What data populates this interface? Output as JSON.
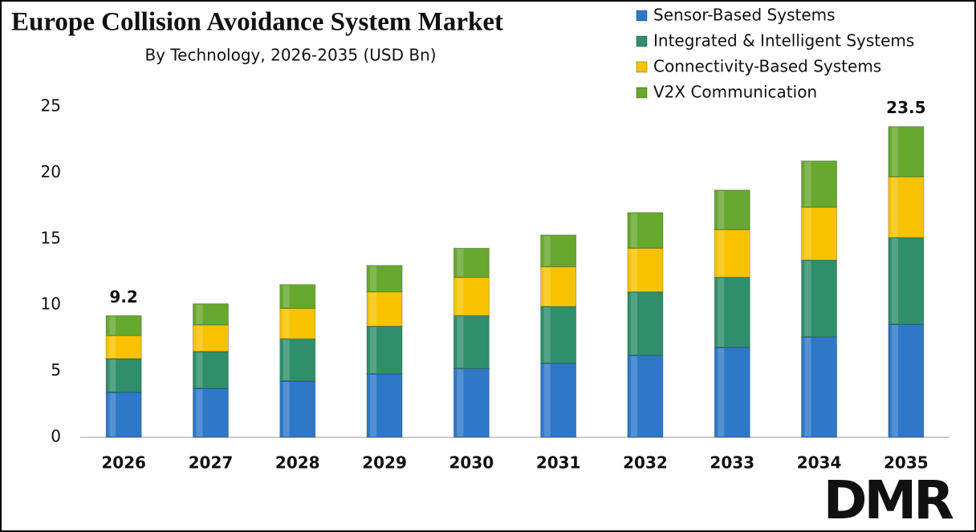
{
  "chart_data": {
    "type": "stacked-bar",
    "title": "Europe Collision Avoidance System Market",
    "subtitle": "By Technology, 2026-2035 (USD Bn)",
    "categories": [
      "2026",
      "2027",
      "2028",
      "2029",
      "2030",
      "2031",
      "2032",
      "2033",
      "2034",
      "2035"
    ],
    "series": [
      {
        "name": "Sensor-Based Systems",
        "color": "#2f78c8",
        "values": [
          3.4,
          3.7,
          4.25,
          4.8,
          5.2,
          5.6,
          6.2,
          6.8,
          7.6,
          8.55
        ]
      },
      {
        "name": "Integrated & Intelligent Systems",
        "color": "#2f8f6a",
        "values": [
          2.55,
          2.8,
          3.2,
          3.6,
          4.0,
          4.3,
          4.8,
          5.3,
          5.8,
          6.55
        ]
      },
      {
        "name": "Connectivity-Based Systems",
        "color": "#f7c300",
        "values": [
          1.75,
          2.0,
          2.3,
          2.6,
          2.9,
          3.0,
          3.3,
          3.6,
          4.0,
          4.6
        ]
      },
      {
        "name": "V2X Communication",
        "color": "#67a82f",
        "values": [
          1.5,
          1.6,
          1.8,
          2.0,
          2.2,
          2.4,
          2.7,
          3.0,
          3.5,
          3.8
        ]
      }
    ],
    "annotations": [
      {
        "category": "2026",
        "value": 9.2
      },
      {
        "category": "2035",
        "value": 23.5
      }
    ],
    "ylim": [
      0,
      25
    ],
    "yticks": [
      0,
      5,
      10,
      15,
      20,
      25
    ],
    "grid": false,
    "legend": "top-right",
    "watermark": "DMR"
  }
}
